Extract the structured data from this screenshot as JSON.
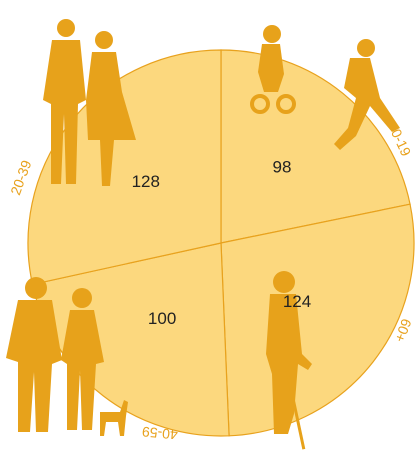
{
  "chart_data": {
    "type": "pie",
    "categories": [
      "0-19",
      "60+",
      "40-59",
      "20-39"
    ],
    "values": [
      98,
      124,
      100,
      128
    ],
    "color": "#fcd87e",
    "edge_color": "#e8a21e"
  }
}
